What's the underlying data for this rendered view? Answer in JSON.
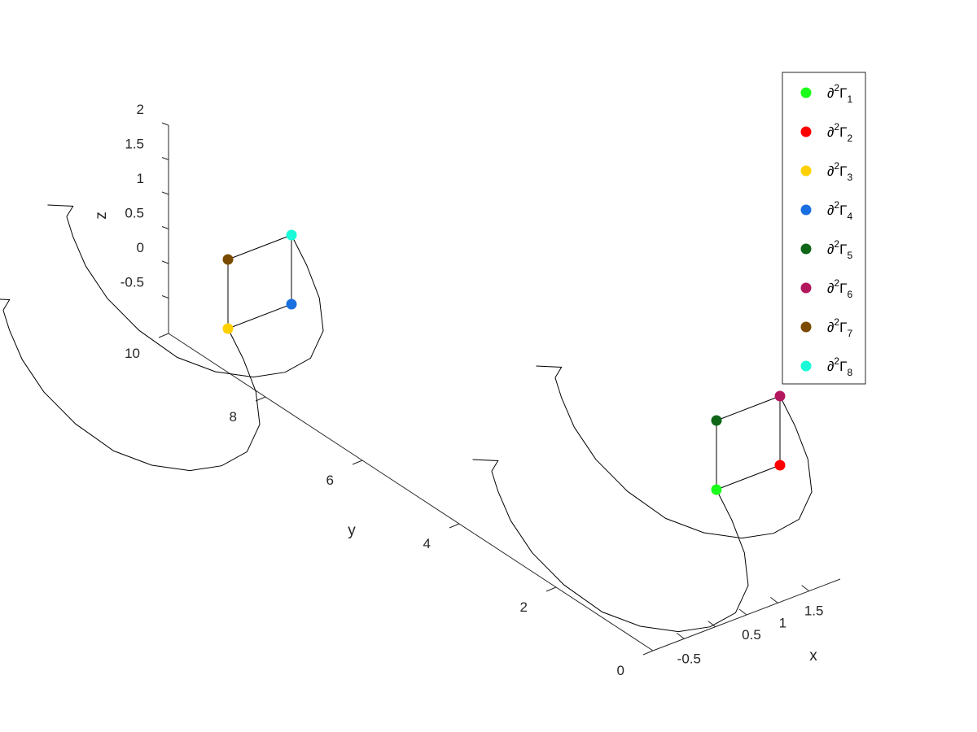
{
  "chart_data": {
    "type": "line3d",
    "title": "",
    "axes": {
      "x": {
        "label": "x",
        "ticks": [
          -0.5,
          0,
          0.5,
          1,
          1.5
        ],
        "tick_labels": [
          "-0.5",
          "",
          "0.5",
          "1",
          "1.5"
        ],
        "range": [
          -1,
          2
        ]
      },
      "y": {
        "label": "y",
        "ticks": [
          0,
          2,
          4,
          6,
          8,
          10
        ],
        "tick_labels": [
          "0",
          "2",
          "4",
          "6",
          "8",
          "10"
        ],
        "range": [
          0,
          10
        ]
      },
      "z": {
        "label": "z",
        "ticks": [
          -0.5,
          0,
          0.5,
          1,
          1.5,
          2
        ],
        "tick_labels": [
          "-0.5",
          "0",
          "0.5",
          "1",
          "1.5",
          "2"
        ],
        "range": [
          -1,
          2
        ]
      }
    },
    "grid": false,
    "legend": {
      "placement": "top-right"
    },
    "points": [
      {
        "label_base": "∂",
        "label_sup": "2",
        "label_main": "Γ",
        "label_sub": "1",
        "color": "#19ff19",
        "x": 0,
        "y": 0,
        "z": 0
      },
      {
        "label_base": "∂",
        "label_sup": "2",
        "label_main": "Γ",
        "label_sub": "2",
        "color": "#ff0000",
        "x": 1,
        "y": 0,
        "z": 0
      },
      {
        "label_base": "∂",
        "label_sup": "2",
        "label_main": "Γ",
        "label_sub": "3",
        "color": "#ffd000",
        "x": 0,
        "y": 10,
        "z": 0
      },
      {
        "label_base": "∂",
        "label_sup": "2",
        "label_main": "Γ",
        "label_sub": "4",
        "color": "#1a70e0",
        "x": 1,
        "y": 10,
        "z": 0
      },
      {
        "label_base": "∂",
        "label_sup": "2",
        "label_main": "Γ",
        "label_sub": "5",
        "color": "#0e6616",
        "x": 0,
        "y": 0,
        "z": 1
      },
      {
        "label_base": "∂",
        "label_sup": "2",
        "label_main": "Γ",
        "label_sub": "6",
        "color": "#b3185e",
        "x": 1,
        "y": 0,
        "z": 1
      },
      {
        "label_base": "∂",
        "label_sup": "2",
        "label_main": "Γ",
        "label_sub": "7",
        "color": "#7a4a00",
        "x": 0,
        "y": 10,
        "z": 1
      },
      {
        "label_base": "∂",
        "label_sup": "2",
        "label_main": "Γ",
        "label_sub": "8",
        "color": "#1afad8",
        "x": 1,
        "y": 10,
        "z": 1
      }
    ],
    "edges": [
      [
        0,
        1
      ],
      [
        4,
        5
      ],
      [
        0,
        4
      ],
      [
        1,
        5
      ],
      [
        2,
        3
      ],
      [
        6,
        7
      ],
      [
        2,
        6
      ],
      [
        3,
        7
      ]
    ],
    "curves": {
      "description_color": "#000000",
      "profile": [
        [
          0,
          0
        ],
        [
          -0.12,
          -0.28
        ],
        [
          -0.22,
          -0.6
        ],
        [
          -0.25,
          -0.95
        ],
        [
          -0.15,
          -1.3
        ],
        [
          0.05,
          -1.55
        ],
        [
          0.3,
          -1.72
        ],
        [
          0.6,
          -1.8
        ],
        [
          0.9,
          -1.78
        ],
        [
          1.2,
          -1.62
        ],
        [
          1.45,
          -1.38
        ],
        [
          1.62,
          -1.1
        ],
        [
          1.72,
          -0.82
        ],
        [
          1.77,
          -0.62
        ]
      ],
      "tip_profile_a": [
        1.72,
        -0.48
      ],
      "tip_profile_b": [
        1.92,
        -0.56
      ],
      "lateral_offsets": [
        0,
        1
      ],
      "y_values": [
        0,
        10
      ]
    }
  }
}
